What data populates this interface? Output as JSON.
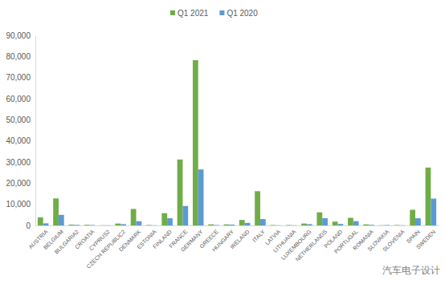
{
  "chart_data": {
    "type": "bar",
    "categories": [
      "AUSTRIA",
      "BELGIUM",
      "BULGARIA2",
      "CROATIA",
      "CYPRUS2",
      "CZECH REPUBLIC2",
      "DENMARK",
      "ESTONIA",
      "FINLAND",
      "FRANCE",
      "GERMANY",
      "GREECE",
      "HUNGARY",
      "IRELAND",
      "ITALY",
      "LATVIA",
      "LITHUANIA",
      "LUXEMBOURG",
      "NETHERLANDS",
      "POLAND",
      "PORTUGAL",
      "ROMANIA",
      "SLOVAKIA",
      "SLOVENIA",
      "SPAIN",
      "SWEDEN"
    ],
    "series": [
      {
        "name": "Q1 2021",
        "color": "#70ad47",
        "values": [
          3800,
          12800,
          400,
          300,
          100,
          900,
          7800,
          200,
          5800,
          31200,
          78200,
          500,
          500,
          2600,
          16200,
          200,
          200,
          900,
          6200,
          1800,
          3600,
          500,
          100,
          200,
          7400,
          27400
        ]
      },
      {
        "name": "Q1 2020",
        "color": "#5b9bd5",
        "values": [
          1000,
          5000,
          300,
          200,
          100,
          600,
          2000,
          100,
          3400,
          9200,
          26500,
          200,
          400,
          1200,
          3000,
          100,
          100,
          600,
          3400,
          700,
          2000,
          300,
          200,
          100,
          3400,
          12700
        ]
      }
    ],
    "ylim": [
      0,
      90000
    ],
    "yticks": [
      0,
      {
        "value": 10000,
        "label": "10,000"
      },
      {
        "value": 20000,
        "label": "20,000"
      },
      {
        "value": 30000,
        "label": "30,000"
      },
      {
        "value": 40000,
        "label": "40,000"
      },
      {
        "value": 50000,
        "label": "50,000"
      },
      {
        "value": 60000,
        "label": "60,000"
      },
      {
        "value": 70000,
        "label": "70,000"
      },
      {
        "value": 80000,
        "label": "80,000"
      },
      {
        "value": 90000,
        "label": "90,000"
      }
    ],
    "grid": false,
    "legend": "top",
    "annotations": [
      "汽车电子设计"
    ]
  }
}
